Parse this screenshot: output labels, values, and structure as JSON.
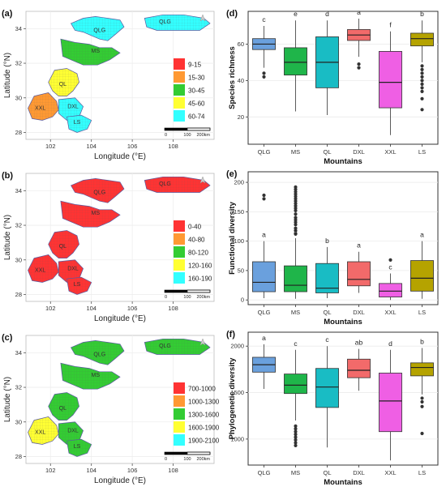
{
  "maps": [
    {
      "panel": "(a)",
      "xlabel": "Longitude (°E)",
      "ylabel": "Latitude (°N)",
      "x_ticks": [
        102,
        104,
        106,
        108
      ],
      "y_ticks": [
        28,
        30,
        32,
        34
      ],
      "xlim": [
        100.8,
        110.0
      ],
      "ylim": [
        27.6,
        35.0
      ],
      "legend_items": [
        {
          "label": "9-15",
          "color": "#ff3333"
        },
        {
          "label": "15-30",
          "color": "#ff9933"
        },
        {
          "label": "30-45",
          "color": "#33cc33"
        },
        {
          "label": "45-60",
          "color": "#ffff33"
        },
        {
          "label": "60-74",
          "color": "#33ffff"
        }
      ],
      "region_labels": [
        "QLG",
        "QLG",
        "MS",
        "QL",
        "XXL",
        "DXL",
        "LS"
      ],
      "scale_labels": [
        "0",
        "100",
        "200km"
      ],
      "fills": {
        "QLG": "#33ffff",
        "MS": "#33cc33",
        "QL": "#ffff33",
        "XXL": "#ff9933",
        "DXL": "#33ffff",
        "LS": "#33ffff"
      }
    },
    {
      "panel": "(b)",
      "xlabel": "Longitude (°E)",
      "ylabel": "Latitude (°N)",
      "x_ticks": [
        102,
        104,
        106,
        108
      ],
      "y_ticks": [
        28,
        30,
        32,
        34
      ],
      "xlim": [
        100.8,
        110.0
      ],
      "ylim": [
        27.6,
        35.0
      ],
      "legend_items": [
        {
          "label": "0-40",
          "color": "#ff3333"
        },
        {
          "label": "40-80",
          "color": "#ff9933"
        },
        {
          "label": "80-120",
          "color": "#33cc33"
        },
        {
          "label": "120-160",
          "color": "#ffff33"
        },
        {
          "label": "160-190",
          "color": "#33ffff"
        }
      ],
      "region_labels": [
        "QLG",
        "QLG",
        "MS",
        "QL",
        "XXL",
        "DXL",
        "LS"
      ],
      "scale_labels": [
        "0",
        "100",
        "200km"
      ],
      "fills": {
        "QLG": "#ff3333",
        "MS": "#ff3333",
        "QL": "#ff3333",
        "XXL": "#ff3333",
        "DXL": "#ff3333",
        "LS": "#ff3333"
      }
    },
    {
      "panel": "(c)",
      "xlabel": "Longitude (°E)",
      "ylabel": "Latitude (°N)",
      "x_ticks": [
        102,
        104,
        106,
        108
      ],
      "y_ticks": [
        28,
        30,
        32,
        34
      ],
      "xlim": [
        100.8,
        110.0
      ],
      "ylim": [
        27.6,
        35.0
      ],
      "legend_items": [
        {
          "label": "700-1000",
          "color": "#ff3333"
        },
        {
          "label": "1000-1300",
          "color": "#ff9933"
        },
        {
          "label": "1300-1600",
          "color": "#33cc33"
        },
        {
          "label": "1600-1900",
          "color": "#ffff33"
        },
        {
          "label": "1900-2100",
          "color": "#33ffff"
        }
      ],
      "region_labels": [
        "QLG",
        "QLG",
        "MS",
        "QL",
        "XXL",
        "DXL",
        "LS"
      ],
      "scale_labels": [
        "0",
        "100",
        "200km"
      ],
      "fills": {
        "QLG": "#33cc33",
        "MS": "#33cc33",
        "QL": "#33cc33",
        "XXL": "#ffff33",
        "DXL": "#33cc33",
        "LS": "#33cc33"
      }
    }
  ],
  "chart_data": [
    {
      "type": "box",
      "panel": "(d)",
      "xlabel": "Mountains",
      "ylabel": "Species richness",
      "ylim": [
        5,
        78
      ],
      "y_ticks": [
        20,
        40,
        60
      ],
      "categories": [
        "QLG",
        "MS",
        "QL",
        "DXL",
        "XXL",
        "LS"
      ],
      "colors": [
        "#6aa0dd",
        "#1fb54a",
        "#19bcc4",
        "#f26a6a",
        "#ef5fe4",
        "#b5a300"
      ],
      "letters": [
        "c",
        "e",
        "d",
        "a",
        "f",
        "b"
      ],
      "boxes": [
        {
          "min": 47,
          "q1": 57,
          "median": 60,
          "q3": 63,
          "max": 70,
          "outliers": [
            44,
            42
          ]
        },
        {
          "min": 23,
          "q1": 43,
          "median": 50,
          "q3": 58,
          "max": 73,
          "outliers": []
        },
        {
          "min": 21,
          "q1": 36,
          "median": 50,
          "q3": 64,
          "max": 73,
          "outliers": []
        },
        {
          "min": 53,
          "q1": 62,
          "median": 65,
          "q3": 68,
          "max": 74,
          "outliers": [
            49,
            47
          ]
        },
        {
          "min": 10,
          "q1": 25,
          "median": 39,
          "q3": 56,
          "max": 67,
          "outliers": []
        },
        {
          "min": 50,
          "q1": 59,
          "median": 63,
          "q3": 66,
          "max": 73,
          "outliers": [
            48,
            46,
            44,
            42,
            40,
            38,
            36,
            34,
            30,
            24
          ]
        }
      ]
    },
    {
      "type": "box",
      "panel": "(e)",
      "xlabel": "Mountains",
      "ylabel": "Functional diversity",
      "ylim": [
        -8,
        218
      ],
      "y_ticks": [
        0,
        50,
        100,
        150,
        200
      ],
      "categories": [
        "QLG",
        "MS",
        "QL",
        "DXL",
        "XXL",
        "LS"
      ],
      "colors": [
        "#6aa0dd",
        "#1fb54a",
        "#19bcc4",
        "#f26a6a",
        "#ef5fe4",
        "#b5a300"
      ],
      "letters": [
        "a",
        "a",
        "b",
        "a",
        "c",
        "a"
      ],
      "boxes": [
        {
          "min": 3,
          "q1": 14,
          "median": 30,
          "q3": 65,
          "max": 100,
          "outliers": [
            172,
            178
          ]
        },
        {
          "min": 2,
          "q1": 14,
          "median": 25,
          "q3": 58,
          "max": 105,
          "outliers": [
            112,
            118,
            122,
            128,
            132,
            136,
            140,
            146,
            152,
            156,
            160,
            164,
            168,
            172,
            176,
            180,
            184,
            188,
            192
          ]
        },
        {
          "min": 3,
          "q1": 12,
          "median": 20,
          "q3": 62,
          "max": 90,
          "outliers": []
        },
        {
          "min": 12,
          "q1": 24,
          "median": 35,
          "q3": 65,
          "max": 82,
          "outliers": []
        },
        {
          "min": 0,
          "q1": 5,
          "median": 15,
          "q3": 28,
          "max": 45,
          "outliers": [
            68
          ]
        },
        {
          "min": 2,
          "q1": 15,
          "median": 37,
          "q3": 67,
          "max": 100,
          "outliers": []
        }
      ]
    },
    {
      "type": "box",
      "panel": "(f)",
      "xlabel": "Mountains",
      "ylabel": "Phylogenetic diversity",
      "ylim": [
        720,
        2150
      ],
      "y_ticks": [
        1000,
        1500,
        2000
      ],
      "categories": [
        "QLG",
        "MS",
        "QL",
        "DXL",
        "XXL",
        "LS"
      ],
      "colors": [
        "#6aa0dd",
        "#1fb54a",
        "#19bcc4",
        "#f26a6a",
        "#ef5fe4",
        "#b5a300"
      ],
      "letters": [
        "a",
        "c",
        "c",
        "ab",
        "d",
        "b"
      ],
      "boxes": [
        {
          "min": 1540,
          "q1": 1720,
          "median": 1800,
          "q3": 1880,
          "max": 2020,
          "outliers": []
        },
        {
          "min": 1200,
          "q1": 1490,
          "median": 1580,
          "q3": 1700,
          "max": 1960,
          "outliers": [
            1140,
            1110,
            1080,
            1050,
            1020,
            990,
            960,
            930
          ]
        },
        {
          "min": 910,
          "q1": 1340,
          "median": 1560,
          "q3": 1760,
          "max": 2000,
          "outliers": []
        },
        {
          "min": 1520,
          "q1": 1660,
          "median": 1740,
          "q3": 1860,
          "max": 1970,
          "outliers": []
        },
        {
          "min": 770,
          "q1": 1080,
          "median": 1410,
          "q3": 1710,
          "max": 1960,
          "outliers": []
        },
        {
          "min": 1480,
          "q1": 1680,
          "median": 1770,
          "q3": 1820,
          "max": 1980,
          "outliers": [
            1440,
            1400,
            1350,
            1060
          ]
        }
      ]
    }
  ]
}
